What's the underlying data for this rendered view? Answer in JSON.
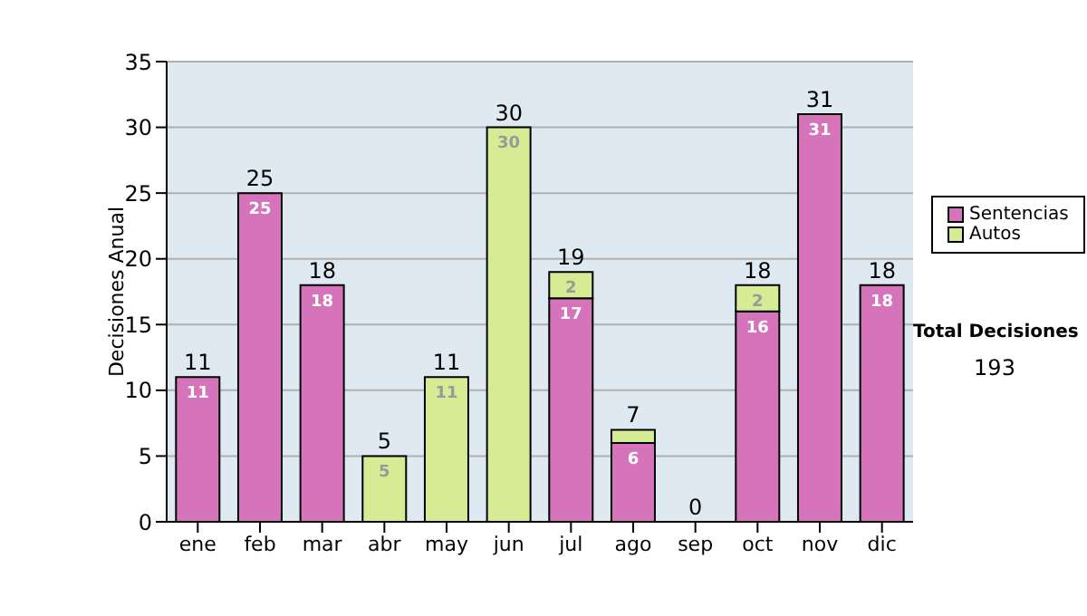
{
  "chart_data": {
    "type": "bar",
    "stacked": true,
    "ylabel": "Decisiones Anual",
    "categories": [
      "ene",
      "feb",
      "mar",
      "abr",
      "may",
      "jun",
      "jul",
      "ago",
      "sep",
      "oct",
      "nov",
      "dic"
    ],
    "series": [
      {
        "name": "Sentencias",
        "color": "#d573bb",
        "values": [
          11,
          25,
          18,
          0,
          0,
          0,
          17,
          6,
          0,
          16,
          31,
          18
        ],
        "value_labels": [
          "11",
          "25",
          "18",
          null,
          null,
          null,
          "17",
          "6",
          null,
          "16",
          "31",
          "18"
        ]
      },
      {
        "name": "Autos",
        "color": "#d5eb94",
        "values": [
          0,
          0,
          0,
          5,
          11,
          30,
          2,
          1,
          0,
          2,
          0,
          0
        ],
        "value_labels": [
          null,
          null,
          null,
          "5",
          "11",
          "30",
          "2",
          null,
          null,
          "2",
          null,
          null
        ]
      }
    ],
    "totals": [
      "11",
      "25",
      "18",
      "5",
      "11",
      "30",
      "19",
      "7",
      "0",
      "18",
      "31",
      "18"
    ],
    "ylim": [
      0,
      35
    ],
    "yticks": [
      0,
      5,
      10,
      15,
      20,
      25,
      30,
      35
    ],
    "grid": "y",
    "legend": "right",
    "annotations": [
      "Total Decisiones",
      "193"
    ]
  }
}
